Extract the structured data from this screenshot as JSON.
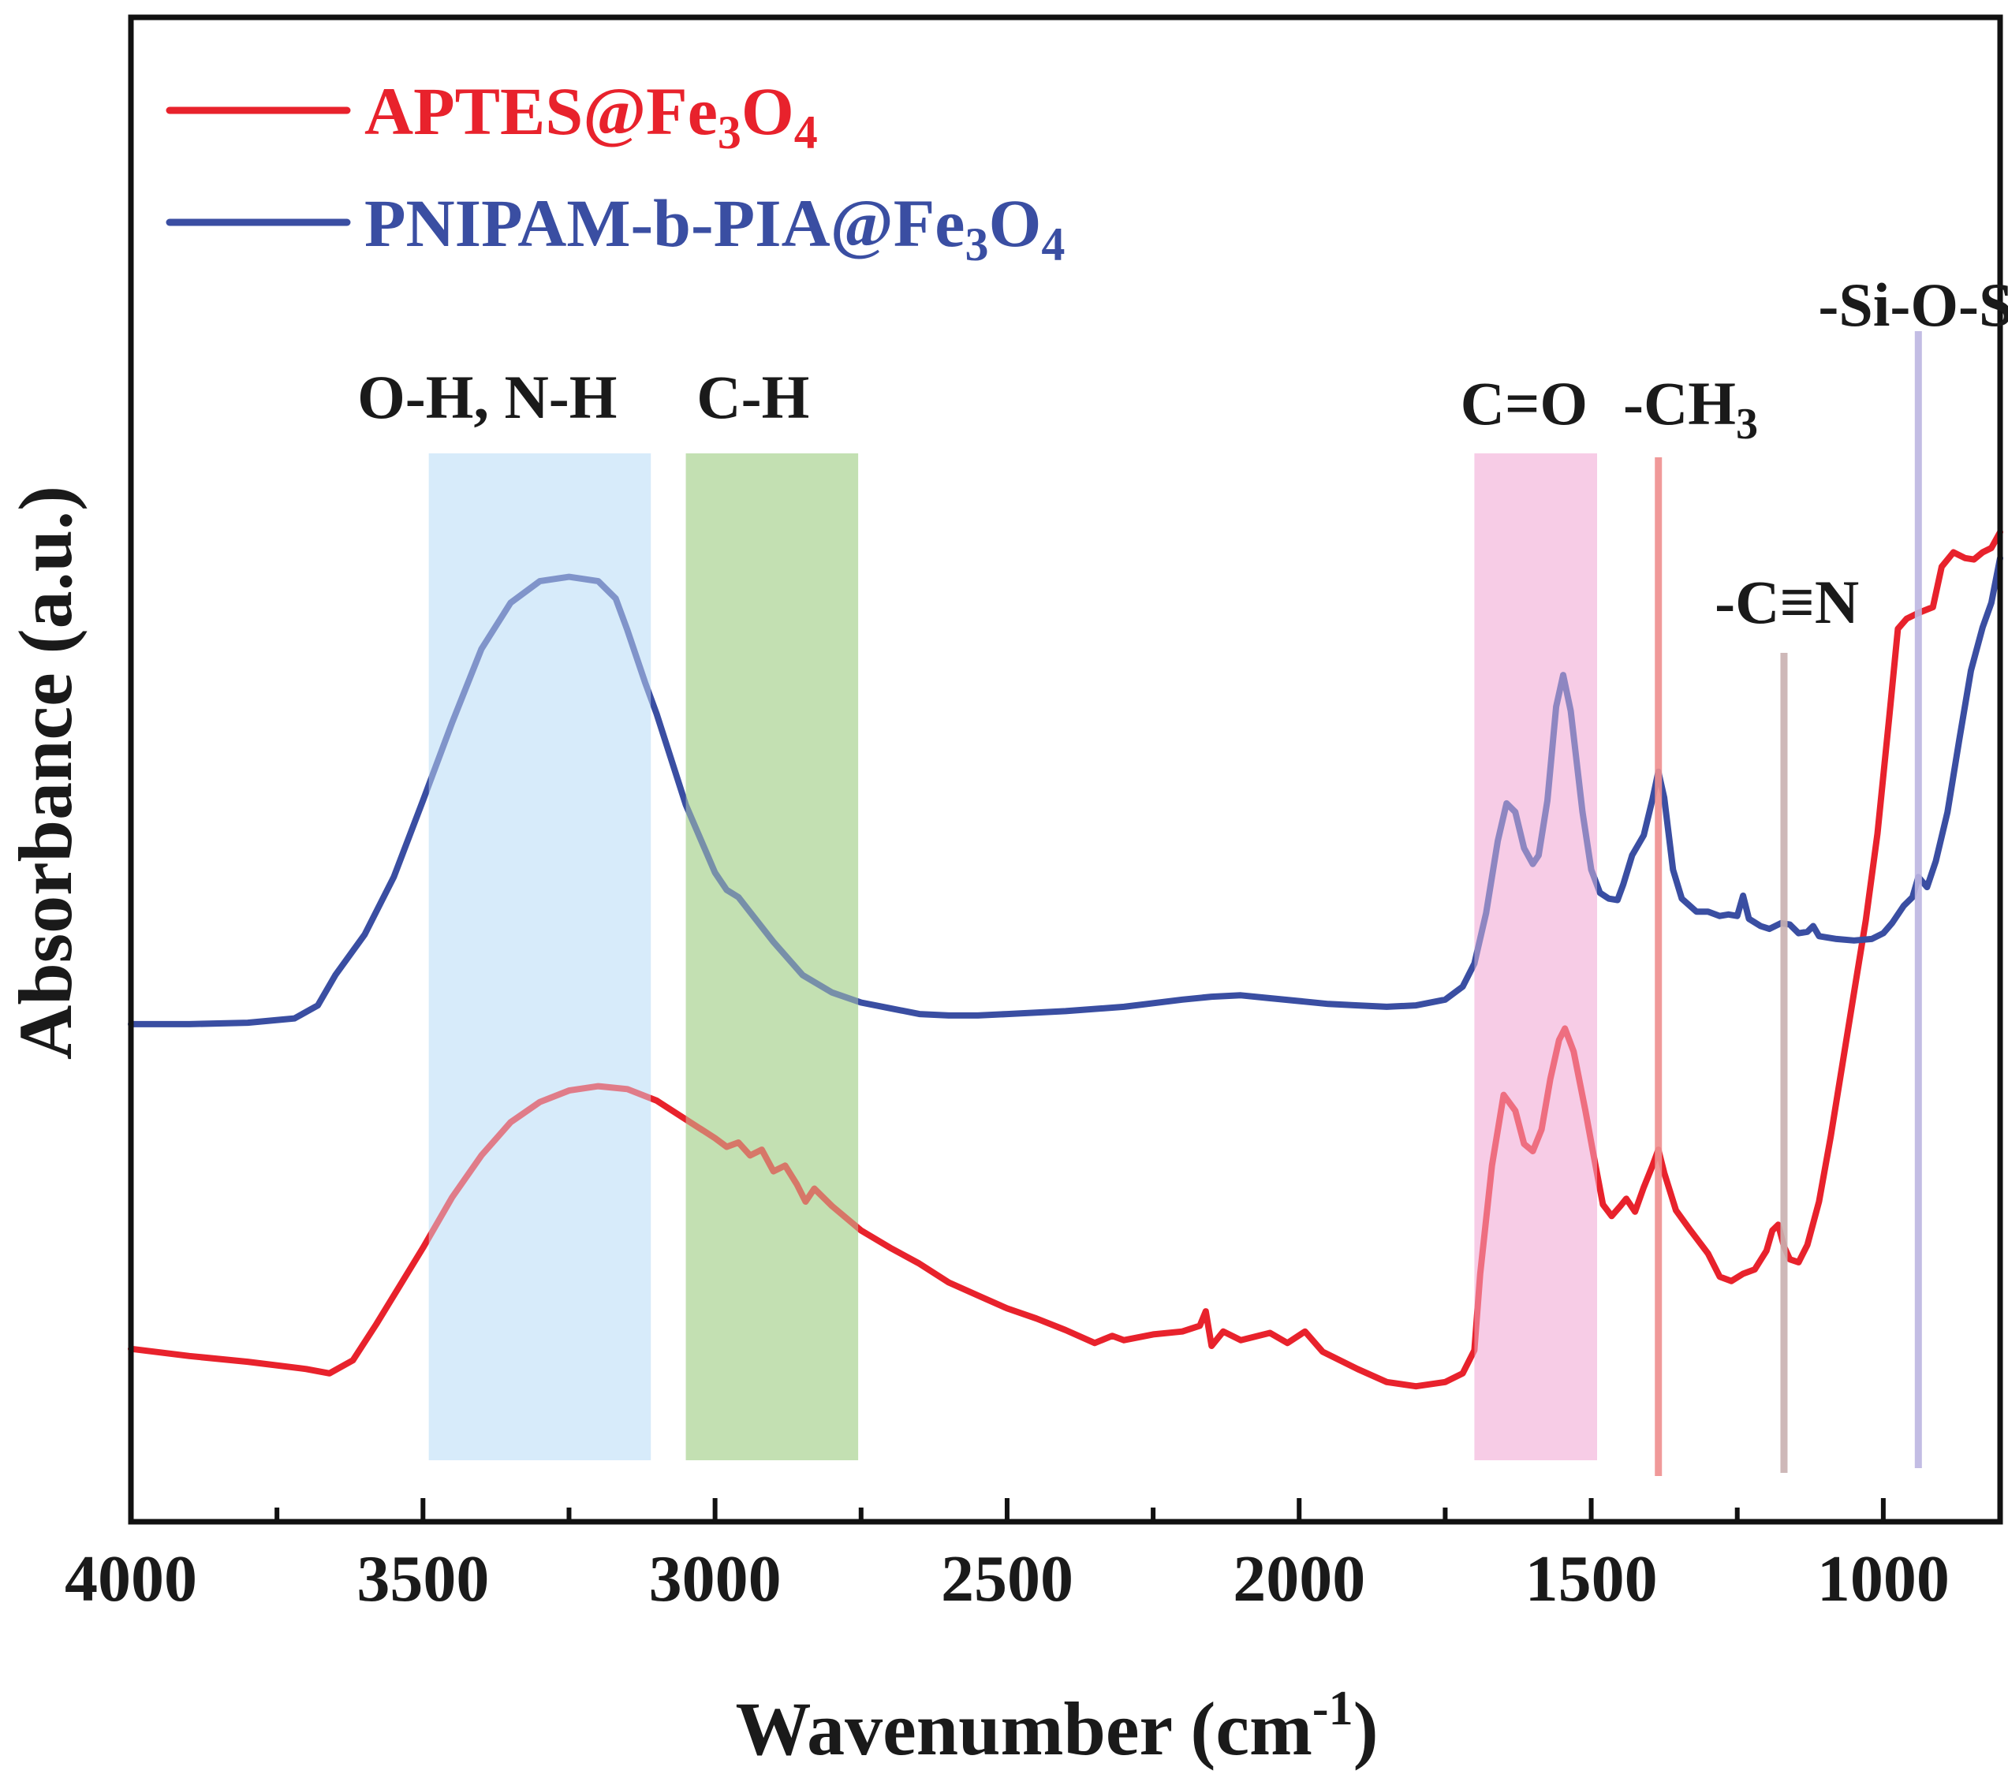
{
  "chart_data": {
    "type": "line",
    "title": "",
    "xlabel": "Wavenumber (cm",
    "xlabel_sup": "-1",
    "xlabel_close": ")",
    "ylabel": "Absorbance (a.u.)",
    "xlim": [
      4000,
      800
    ],
    "ylim": [
      0,
      1
    ],
    "x_reversed": true,
    "y_ticks_shown": false,
    "xticks": [
      4000,
      3500,
      3000,
      2500,
      2000,
      1500,
      1000
    ],
    "xtick_labels": [
      "4000",
      "3500",
      "3000",
      "2500",
      "2000",
      "1500",
      "1000"
    ],
    "legend": {
      "position": "top-left"
    },
    "series": [
      {
        "name": "APTES@Fe3O4",
        "label_parts": [
          "APTES@Fe",
          "3",
          "O",
          "4"
        ],
        "color": "#e8222c",
        "points": [
          [
            4000,
            0.098
          ],
          [
            3900,
            0.093
          ],
          [
            3800,
            0.089
          ],
          [
            3700,
            0.084
          ],
          [
            3660,
            0.081
          ],
          [
            3620,
            0.09
          ],
          [
            3580,
            0.115
          ],
          [
            3500,
            0.168
          ],
          [
            3450,
            0.203
          ],
          [
            3400,
            0.232
          ],
          [
            3350,
            0.255
          ],
          [
            3300,
            0.269
          ],
          [
            3250,
            0.277
          ],
          [
            3200,
            0.28
          ],
          [
            3150,
            0.278
          ],
          [
            3100,
            0.27
          ],
          [
            3050,
            0.257
          ],
          [
            3000,
            0.244
          ],
          [
            2980,
            0.238
          ],
          [
            2960,
            0.241
          ],
          [
            2940,
            0.232
          ],
          [
            2920,
            0.236
          ],
          [
            2900,
            0.221
          ],
          [
            2880,
            0.225
          ],
          [
            2860,
            0.212
          ],
          [
            2845,
            0.2
          ],
          [
            2830,
            0.209
          ],
          [
            2800,
            0.197
          ],
          [
            2750,
            0.18
          ],
          [
            2700,
            0.168
          ],
          [
            2650,
            0.157
          ],
          [
            2600,
            0.144
          ],
          [
            2550,
            0.135
          ],
          [
            2500,
            0.126
          ],
          [
            2450,
            0.119
          ],
          [
            2400,
            0.111
          ],
          [
            2350,
            0.102
          ],
          [
            2320,
            0.107
          ],
          [
            2300,
            0.104
          ],
          [
            2250,
            0.108
          ],
          [
            2200,
            0.11
          ],
          [
            2170,
            0.114
          ],
          [
            2160,
            0.124
          ],
          [
            2150,
            0.1
          ],
          [
            2130,
            0.11
          ],
          [
            2100,
            0.104
          ],
          [
            2050,
            0.109
          ],
          [
            2020,
            0.102
          ],
          [
            1990,
            0.11
          ],
          [
            1960,
            0.096
          ],
          [
            1900,
            0.084
          ],
          [
            1850,
            0.075
          ],
          [
            1800,
            0.072
          ],
          [
            1750,
            0.075
          ],
          [
            1720,
            0.081
          ],
          [
            1700,
            0.097
          ],
          [
            1690,
            0.15
          ],
          [
            1670,
            0.225
          ],
          [
            1650,
            0.274
          ],
          [
            1630,
            0.263
          ],
          [
            1615,
            0.24
          ],
          [
            1600,
            0.235
          ],
          [
            1585,
            0.25
          ],
          [
            1570,
            0.285
          ],
          [
            1555,
            0.312
          ],
          [
            1545,
            0.32
          ],
          [
            1530,
            0.304
          ],
          [
            1510,
            0.263
          ],
          [
            1495,
            0.23
          ],
          [
            1480,
            0.198
          ],
          [
            1465,
            0.19
          ],
          [
            1450,
            0.197
          ],
          [
            1440,
            0.202
          ],
          [
            1425,
            0.193
          ],
          [
            1410,
            0.21
          ],
          [
            1395,
            0.225
          ],
          [
            1385,
            0.236
          ],
          [
            1375,
            0.22
          ],
          [
            1355,
            0.194
          ],
          [
            1330,
            0.18
          ],
          [
            1300,
            0.164
          ],
          [
            1280,
            0.148
          ],
          [
            1260,
            0.145
          ],
          [
            1240,
            0.15
          ],
          [
            1220,
            0.153
          ],
          [
            1200,
            0.166
          ],
          [
            1190,
            0.18
          ],
          [
            1180,
            0.184
          ],
          [
            1170,
            0.169
          ],
          [
            1160,
            0.16
          ],
          [
            1145,
            0.158
          ],
          [
            1130,
            0.17
          ],
          [
            1110,
            0.2
          ],
          [
            1090,
            0.245
          ],
          [
            1070,
            0.295
          ],
          [
            1050,
            0.345
          ],
          [
            1030,
            0.395
          ],
          [
            1010,
            0.455
          ],
          [
            990,
            0.535
          ],
          [
            975,
            0.597
          ],
          [
            960,
            0.604
          ],
          [
            940,
            0.608
          ],
          [
            915,
            0.612
          ],
          [
            900,
            0.64
          ],
          [
            880,
            0.65
          ],
          [
            860,
            0.646
          ],
          [
            845,
            0.645
          ],
          [
            830,
            0.65
          ],
          [
            815,
            0.653
          ],
          [
            800,
            0.664
          ]
        ]
      },
      {
        "name": "PNIPAM-b-PIA@Fe3O4",
        "label_parts": [
          "PNIPAM-b-PIA@Fe",
          "3",
          "O",
          "4"
        ],
        "color": "#3a4ea2",
        "points": [
          [
            4000,
            0.323
          ],
          [
            3900,
            0.323
          ],
          [
            3800,
            0.324
          ],
          [
            3720,
            0.327
          ],
          [
            3680,
            0.336
          ],
          [
            3650,
            0.357
          ],
          [
            3600,
            0.385
          ],
          [
            3550,
            0.425
          ],
          [
            3500,
            0.478
          ],
          [
            3450,
            0.532
          ],
          [
            3400,
            0.583
          ],
          [
            3350,
            0.615
          ],
          [
            3300,
            0.63
          ],
          [
            3250,
            0.633
          ],
          [
            3200,
            0.63
          ],
          [
            3170,
            0.618
          ],
          [
            3150,
            0.596
          ],
          [
            3120,
            0.56
          ],
          [
            3100,
            0.538
          ],
          [
            3050,
            0.475
          ],
          [
            3000,
            0.428
          ],
          [
            2980,
            0.416
          ],
          [
            2960,
            0.411
          ],
          [
            2900,
            0.38
          ],
          [
            2850,
            0.357
          ],
          [
            2800,
            0.345
          ],
          [
            2750,
            0.338
          ],
          [
            2700,
            0.334
          ],
          [
            2650,
            0.33
          ],
          [
            2600,
            0.329
          ],
          [
            2550,
            0.329
          ],
          [
            2500,
            0.33
          ],
          [
            2400,
            0.332
          ],
          [
            2300,
            0.335
          ],
          [
            2200,
            0.34
          ],
          [
            2150,
            0.342
          ],
          [
            2100,
            0.343
          ],
          [
            2050,
            0.341
          ],
          [
            2000,
            0.339
          ],
          [
            1950,
            0.337
          ],
          [
            1900,
            0.336
          ],
          [
            1850,
            0.335
          ],
          [
            1800,
            0.336
          ],
          [
            1750,
            0.34
          ],
          [
            1720,
            0.349
          ],
          [
            1700,
            0.365
          ],
          [
            1680,
            0.4
          ],
          [
            1660,
            0.45
          ],
          [
            1645,
            0.476
          ],
          [
            1630,
            0.47
          ],
          [
            1615,
            0.445
          ],
          [
            1600,
            0.434
          ],
          [
            1590,
            0.44
          ],
          [
            1575,
            0.478
          ],
          [
            1560,
            0.543
          ],
          [
            1548,
            0.565
          ],
          [
            1535,
            0.54
          ],
          [
            1515,
            0.47
          ],
          [
            1500,
            0.43
          ],
          [
            1485,
            0.414
          ],
          [
            1470,
            0.41
          ],
          [
            1455,
            0.409
          ],
          [
            1445,
            0.42
          ],
          [
            1430,
            0.44
          ],
          [
            1410,
            0.454
          ],
          [
            1395,
            0.479
          ],
          [
            1385,
            0.498
          ],
          [
            1375,
            0.48
          ],
          [
            1360,
            0.43
          ],
          [
            1345,
            0.41
          ],
          [
            1320,
            0.401
          ],
          [
            1300,
            0.401
          ],
          [
            1280,
            0.398
          ],
          [
            1265,
            0.399
          ],
          [
            1250,
            0.398
          ],
          [
            1240,
            0.412
          ],
          [
            1230,
            0.396
          ],
          [
            1210,
            0.391
          ],
          [
            1195,
            0.389
          ],
          [
            1175,
            0.393
          ],
          [
            1160,
            0.392
          ],
          [
            1145,
            0.386
          ],
          [
            1130,
            0.387
          ],
          [
            1120,
            0.391
          ],
          [
            1110,
            0.384
          ],
          [
            1080,
            0.382
          ],
          [
            1050,
            0.381
          ],
          [
            1020,
            0.382
          ],
          [
            1000,
            0.386
          ],
          [
            985,
            0.393
          ],
          [
            965,
            0.405
          ],
          [
            950,
            0.411
          ],
          [
            940,
            0.425
          ],
          [
            925,
            0.418
          ],
          [
            910,
            0.436
          ],
          [
            890,
            0.47
          ],
          [
            870,
            0.52
          ],
          [
            850,
            0.568
          ],
          [
            830,
            0.598
          ],
          [
            815,
            0.615
          ],
          [
            800,
            0.646
          ]
        ]
      }
    ],
    "annotations": [
      {
        "id": "oh-nh",
        "text": "O-H, N-H",
        "band": [
          3490,
          3110
        ],
        "color": "#d7ebfa",
        "label_x": 3390
      },
      {
        "id": "ch",
        "text": "C-H",
        "band": [
          3050,
          2755
        ],
        "color": "#c4e0b2",
        "label_x": 2935
      },
      {
        "id": "co",
        "text": "C=O",
        "band": [
          1700,
          1490
        ],
        "color": "#f7cde6",
        "label_x": 1615
      },
      {
        "id": "ch3",
        "text": "-CH",
        "text_sub": "3",
        "line": 1385,
        "color": "#ef8f8f",
        "label_x": 1330
      },
      {
        "id": "cn",
        "text": "-C≡N",
        "line": 1170,
        "color": "#c9b1b1",
        "label_x": 1165
      },
      {
        "id": "sioso",
        "text": "-Si-O-Si",
        "line": 940,
        "color": "#bdb6e2",
        "label_x": 930
      }
    ]
  }
}
